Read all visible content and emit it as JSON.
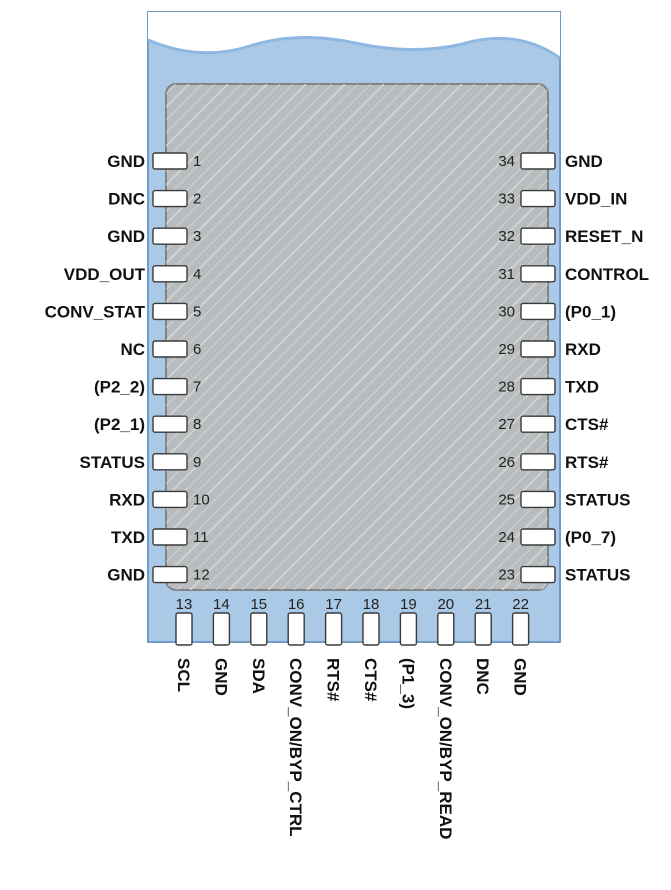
{
  "module": {
    "colors": {
      "board": "#a9c9e6",
      "board_edge": "#6f9bc7",
      "board_top": "#8eb8e2",
      "shield": "#b9bcbf",
      "shield_edge": "#7f8386",
      "hatch": "#d8dbd5",
      "pad_fill": "#ffffff",
      "pad_edge": "#3a3a3a"
    }
  },
  "pins": {
    "left": [
      {
        "num": "1",
        "name": "GND"
      },
      {
        "num": "2",
        "name": "DNC"
      },
      {
        "num": "3",
        "name": "GND"
      },
      {
        "num": "4",
        "name": "VDD_OUT"
      },
      {
        "num": "5",
        "name": "CONV_STAT"
      },
      {
        "num": "6",
        "name": "NC"
      },
      {
        "num": "7",
        "name": "(P2_2)"
      },
      {
        "num": "8",
        "name": "(P2_1)"
      },
      {
        "num": "9",
        "name": "STATUS"
      },
      {
        "num": "10",
        "name": "RXD"
      },
      {
        "num": "11",
        "name": "TXD"
      },
      {
        "num": "12",
        "name": "GND"
      }
    ],
    "right": [
      {
        "num": "34",
        "name": "GND"
      },
      {
        "num": "33",
        "name": "VDD_IN"
      },
      {
        "num": "32",
        "name": "RESET_N"
      },
      {
        "num": "31",
        "name": "CONTROL"
      },
      {
        "num": "30",
        "name": "(P0_1)"
      },
      {
        "num": "29",
        "name": "RXD"
      },
      {
        "num": "28",
        "name": "TXD"
      },
      {
        "num": "27",
        "name": "CTS#"
      },
      {
        "num": "26",
        "name": "RTS#"
      },
      {
        "num": "25",
        "name": "STATUS"
      },
      {
        "num": "24",
        "name": "(P0_7)"
      },
      {
        "num": "23",
        "name": "STATUS"
      }
    ],
    "bottom": [
      {
        "num": "13",
        "name": "SCL"
      },
      {
        "num": "14",
        "name": "GND"
      },
      {
        "num": "15",
        "name": "SDA"
      },
      {
        "num": "16",
        "name": "CONV_ON/BYP_CTRL"
      },
      {
        "num": "17",
        "name": "RTS#"
      },
      {
        "num": "18",
        "name": "CTS#"
      },
      {
        "num": "19",
        "name": "(P1_3)"
      },
      {
        "num": "20",
        "name": "CONV_ON/BYP_READ"
      },
      {
        "num": "21",
        "name": "DNC"
      },
      {
        "num": "22",
        "name": "GND"
      }
    ]
  }
}
